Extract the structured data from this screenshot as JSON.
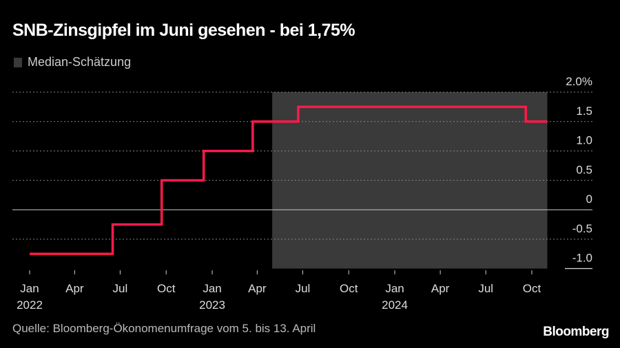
{
  "title": "SNB-Zinsgipfel im Juni gesehen - bei 1,75%",
  "legend": {
    "label": "Median-Schätzung",
    "color": "#3a3a3a"
  },
  "source": "Quelle: Bloomberg-Ökonomenumfrage vom 5. bis 13. April",
  "brand": "Bloomberg",
  "chart_data": {
    "type": "line",
    "step": true,
    "line_color": "#ff1a4b",
    "ylim": [
      -1.0,
      2.0
    ],
    "yticks": [
      "2.0%",
      "1.5",
      "1.0",
      "0.5",
      "0",
      "-0.5",
      "-1.0"
    ],
    "ytick_values": [
      2.0,
      1.5,
      1.0,
      0.5,
      0,
      -0.5,
      -1.0
    ],
    "xticks": [
      {
        "date": "2022-01-01",
        "label": "Jan",
        "year": "2022"
      },
      {
        "date": "2022-04-01",
        "label": "Apr"
      },
      {
        "date": "2022-07-01",
        "label": "Jul"
      },
      {
        "date": "2022-10-01",
        "label": "Oct"
      },
      {
        "date": "2023-01-01",
        "label": "Jan",
        "year": "2023"
      },
      {
        "date": "2023-04-01",
        "label": "Apr"
      },
      {
        "date": "2023-07-01",
        "label": "Jul"
      },
      {
        "date": "2023-10-01",
        "label": "Oct"
      },
      {
        "date": "2024-01-01",
        "label": "Jan",
        "year": "2024"
      },
      {
        "date": "2024-04-01",
        "label": "Apr"
      },
      {
        "date": "2024-07-01",
        "label": "Jul"
      },
      {
        "date": "2024-10-01",
        "label": "Oct"
      }
    ],
    "points": [
      {
        "x": "2022-01-01",
        "y": -0.75
      },
      {
        "x": "2022-06-16",
        "y": -0.25
      },
      {
        "x": "2022-09-22",
        "y": 0.5
      },
      {
        "x": "2022-12-15",
        "y": 1.0
      },
      {
        "x": "2023-03-23",
        "y": 1.5
      },
      {
        "x": "2023-06-22",
        "y": 1.75
      },
      {
        "x": "2024-09-19",
        "y": 1.5
      },
      {
        "x": "2024-11-01",
        "y": 1.5
      }
    ],
    "shaded_region": {
      "from": "2023-05-01",
      "to": "2024-11-01",
      "label": "Median-Schätzung"
    },
    "grid": true
  }
}
